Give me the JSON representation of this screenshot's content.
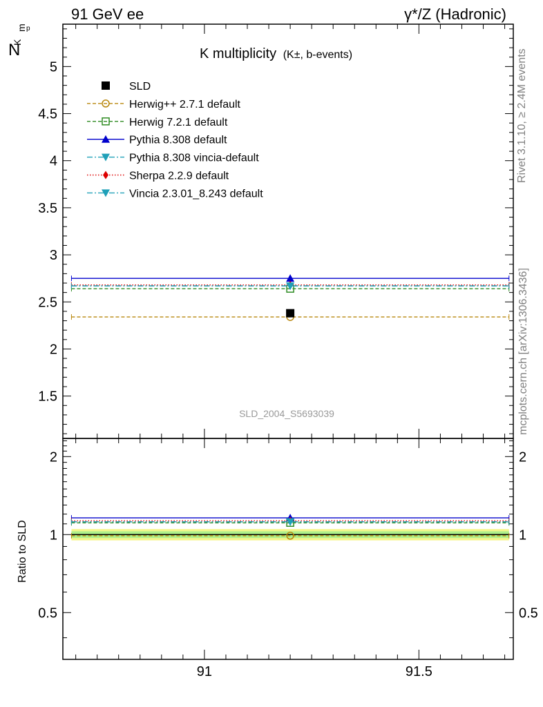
{
  "header": {
    "left": "91 GeV ee",
    "right": "γ*/Z (Hadronic)"
  },
  "side_labels": {
    "rivet": "Rivet 3.1.10, ≥ 2.4M events",
    "mcplots": "mcplots.cern.ch [arXiv:1306.3436]"
  },
  "ylabel_main": "N",
  "ylabel_sub": "K",
  "ylabel_sup": "p",
  "ylabel_sub2": "m",
  "ylabel_ratio": "Ratio to SLD",
  "analysis_tag": "SLD_2004_S5693039",
  "chart_data": [
    {
      "panel": "main",
      "type": "scatter",
      "title": "K multiplicity",
      "title_sub": "(K±, b-events)",
      "xlim": [
        90.67,
        91.72
      ],
      "ylim": [
        1.05,
        5.45
      ],
      "yticks": [
        1.5,
        2,
        2.5,
        3,
        3.5,
        4,
        4.5,
        5
      ],
      "ytick_labels": [
        "1.5",
        "2",
        "2.5",
        "3",
        "3.5",
        "4",
        "4.5",
        "5"
      ],
      "xticks": [
        91,
        91.5
      ],
      "legend_position": "top-left",
      "bin": [
        90.69,
        91.71
      ],
      "x_center": 91.2,
      "series": [
        {
          "name": "SLD",
          "y": 2.38,
          "color": "#000000",
          "marker": "square",
          "line": "none"
        },
        {
          "name": "Herwig++ 2.7.1 default",
          "y": 2.34,
          "color": "#b8860b",
          "marker": "circle-open",
          "line": "dashed"
        },
        {
          "name": "Herwig 7.2.1 default",
          "y": 2.64,
          "color": "#2e8b22",
          "marker": "square-open",
          "line": "dashed"
        },
        {
          "name": "Pythia 8.308 default",
          "y": 2.75,
          "color": "#0000cc",
          "marker": "triangle-up",
          "line": "solid"
        },
        {
          "name": "Pythia 8.308 vincia-default",
          "y": 2.67,
          "color": "#1fa0b8",
          "marker": "triangle-down",
          "line": "dashdot"
        },
        {
          "name": "Sherpa 2.2.9 default",
          "y": 2.68,
          "color": "#dd0000",
          "marker": "diamond",
          "line": "dotted"
        },
        {
          "name": "Vincia 2.3.01_8.243 default",
          "y": 2.67,
          "color": "#1fa0b8",
          "marker": "triangle-down",
          "line": "dashdot"
        }
      ]
    },
    {
      "panel": "ratio",
      "type": "scatter",
      "ylabel": "Ratio to SLD",
      "xlim": [
        90.67,
        91.72
      ],
      "ylim": [
        0.33,
        2.35
      ],
      "yticks": [
        0.5,
        1,
        2
      ],
      "ytick_labels": [
        "0.5",
        "1",
        "2"
      ],
      "xticks": [
        91,
        91.5
      ],
      "xtick_labels": [
        "91",
        "91.5"
      ],
      "band_inner": [
        0.97,
        1.03
      ],
      "band_outer": [
        0.95,
        1.05
      ],
      "series": [
        {
          "name": "Herwig++ 2.7.1 default",
          "y": 0.99
        },
        {
          "name": "Herwig 7.2.1 default",
          "y": 1.11
        },
        {
          "name": "Pythia 8.308 default",
          "y": 1.16
        },
        {
          "name": "Pythia 8.308 vincia-default",
          "y": 1.12
        },
        {
          "name": "Sherpa 2.2.9 default",
          "y": 1.13
        },
        {
          "name": "Vincia 2.3.01_8.243 default",
          "y": 1.12
        }
      ]
    }
  ]
}
